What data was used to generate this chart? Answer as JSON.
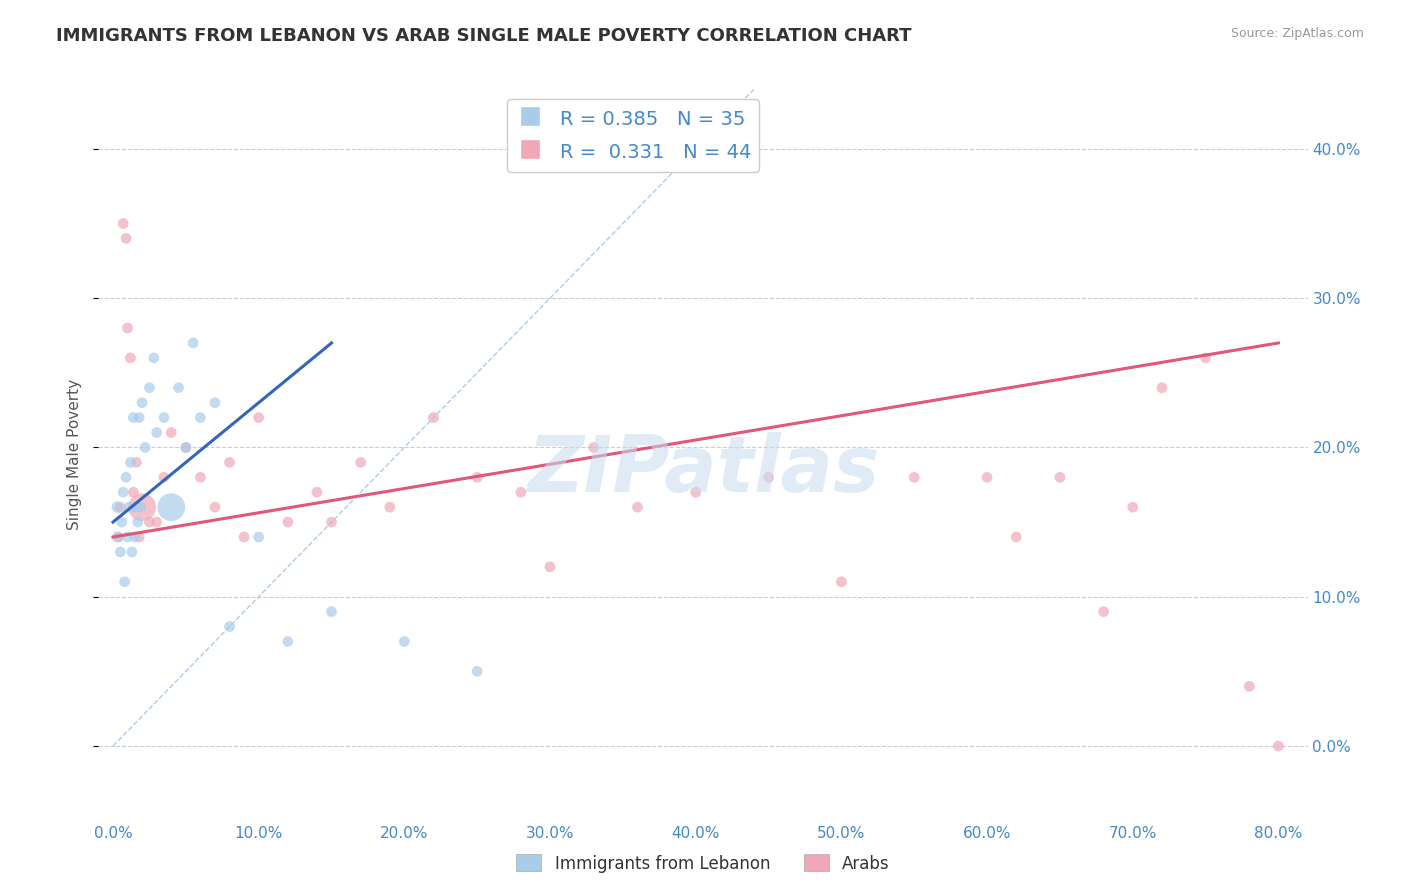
{
  "title": "IMMIGRANTS FROM LEBANON VS ARAB SINGLE MALE POVERTY CORRELATION CHART",
  "source": "Source: ZipAtlas.com",
  "xlabel_vals": [
    0,
    10,
    20,
    30,
    40,
    50,
    60,
    70,
    80
  ],
  "ylabel": "Single Male Poverty",
  "ylabel_right_vals": [
    0,
    10,
    20,
    30,
    40
  ],
  "xlim": [
    -1,
    82
  ],
  "ylim": [
    -5,
    44
  ],
  "legend1_R": "0.385",
  "legend1_N": "35",
  "legend2_R": "0.331",
  "legend2_N": "44",
  "series1_label": "Immigrants from Lebanon",
  "series2_label": "Arabs",
  "color_blue": "#A8CCEA",
  "color_pink": "#F0A8B8",
  "line_blue": "#3366BB",
  "line_pink": "#E05878",
  "watermark": "ZIPatlas",
  "blue_x": [
    0.3,
    0.4,
    0.5,
    0.6,
    0.7,
    0.8,
    0.9,
    1.0,
    1.1,
    1.2,
    1.3,
    1.4,
    1.5,
    1.6,
    1.7,
    1.8,
    1.9,
    2.0,
    2.2,
    2.5,
    2.8,
    3.0,
    3.5,
    4.0,
    4.5,
    5.0,
    5.5,
    6.0,
    7.0,
    8.0,
    10.0,
    12.0,
    15.0,
    20.0,
    25.0
  ],
  "blue_y": [
    16.0,
    14.0,
    13.0,
    15.0,
    17.0,
    11.0,
    18.0,
    14.0,
    16.0,
    19.0,
    13.0,
    22.0,
    14.0,
    16.0,
    15.0,
    22.0,
    16.0,
    23.0,
    20.0,
    24.0,
    26.0,
    21.0,
    22.0,
    16.0,
    24.0,
    20.0,
    27.0,
    22.0,
    23.0,
    8.0,
    14.0,
    7.0,
    9.0,
    7.0,
    5.0
  ],
  "blue_size": [
    70,
    60,
    60,
    60,
    60,
    60,
    60,
    60,
    60,
    60,
    60,
    60,
    60,
    60,
    60,
    60,
    60,
    60,
    60,
    60,
    60,
    60,
    60,
    400,
    60,
    60,
    60,
    60,
    60,
    60,
    60,
    60,
    60,
    60,
    60
  ],
  "pink_x": [
    0.3,
    0.5,
    0.7,
    0.9,
    1.0,
    1.2,
    1.4,
    1.6,
    1.8,
    2.0,
    2.5,
    3.0,
    3.5,
    4.0,
    5.0,
    6.0,
    7.0,
    8.0,
    9.0,
    10.0,
    12.0,
    14.0,
    15.0,
    17.0,
    19.0,
    22.0,
    25.0,
    28.0,
    30.0,
    33.0,
    36.0,
    40.0,
    45.0,
    50.0,
    55.0,
    60.0,
    62.0,
    65.0,
    68.0,
    70.0,
    72.0,
    75.0,
    78.0,
    80.0
  ],
  "pink_y": [
    14.0,
    16.0,
    35.0,
    34.0,
    28.0,
    26.0,
    17.0,
    19.0,
    14.0,
    16.0,
    15.0,
    15.0,
    18.0,
    21.0,
    20.0,
    18.0,
    16.0,
    19.0,
    14.0,
    22.0,
    15.0,
    17.0,
    15.0,
    19.0,
    16.0,
    22.0,
    18.0,
    17.0,
    12.0,
    20.0,
    16.0,
    17.0,
    18.0,
    11.0,
    18.0,
    18.0,
    14.0,
    18.0,
    9.0,
    16.0,
    24.0,
    26.0,
    4.0,
    0.0
  ],
  "pink_size": [
    60,
    60,
    60,
    60,
    60,
    60,
    60,
    60,
    60,
    400,
    60,
    60,
    60,
    60,
    60,
    60,
    60,
    60,
    60,
    60,
    60,
    60,
    60,
    60,
    60,
    60,
    60,
    60,
    60,
    60,
    60,
    60,
    60,
    60,
    60,
    60,
    60,
    60,
    60,
    60,
    60,
    60,
    60,
    60
  ]
}
